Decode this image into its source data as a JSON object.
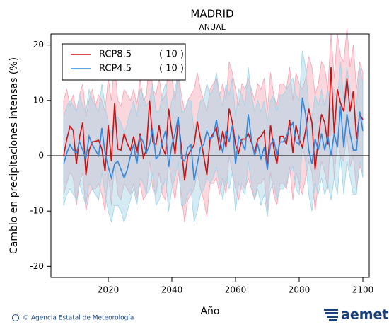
{
  "chart_data": {
    "type": "line",
    "title": "MADRID",
    "subtitle": "ANUAL",
    "y_label": "Cambio en precipitaciones intensas (%)",
    "x_label": "Año",
    "source": "© Agencia Estatal de Meteorología",
    "logo": "aemet",
    "xlim": [
      2002,
      2102
    ],
    "xticks": [
      2020,
      2040,
      2060,
      2080,
      2100
    ],
    "ylim": [
      -22,
      22
    ],
    "yticks": [
      -20,
      -10,
      0,
      10,
      20
    ],
    "hline": 0,
    "legend": "upper left",
    "x": [
      2006,
      2007,
      2008,
      2009,
      2010,
      2011,
      2012,
      2013,
      2014,
      2015,
      2016,
      2017,
      2018,
      2019,
      2020,
      2021,
      2022,
      2023,
      2024,
      2025,
      2026,
      2027,
      2028,
      2029,
      2030,
      2031,
      2032,
      2033,
      2034,
      2035,
      2036,
      2037,
      2038,
      2039,
      2040,
      2041,
      2042,
      2043,
      2044,
      2045,
      2046,
      2047,
      2048,
      2049,
      2050,
      2051,
      2052,
      2053,
      2054,
      2055,
      2056,
      2057,
      2058,
      2059,
      2060,
      2061,
      2062,
      2063,
      2064,
      2065,
      2066,
      2067,
      2068,
      2069,
      2070,
      2071,
      2072,
      2073,
      2074,
      2075,
      2076,
      2077,
      2078,
      2079,
      2080,
      2081,
      2082,
      2083,
      2084,
      2085,
      2086,
      2087,
      2088,
      2089,
      2090,
      2091,
      2092,
      2093,
      2094,
      2095,
      2096,
      2097,
      2098,
      2099,
      2100
    ],
    "series": [
      {
        "name": "RCP8.5",
        "legend_note": "( 10 )",
        "color": "#cc1111",
        "band_color": "#f5a3b3",
        "values": [
          0,
          3,
          5.3,
          4.6,
          -1.5,
          3.4,
          6,
          -3.5,
          1,
          2.5,
          2.6,
          2.8,
          1.2,
          -2.8,
          5.5,
          -1,
          9.5,
          1.2,
          1,
          4,
          2.2,
          1,
          3.5,
          0.5,
          4,
          -0.3,
          1,
          10,
          2.5,
          2,
          5.5,
          1.5,
          0.2,
          8.5,
          4.2,
          0.3,
          6.5,
          1.5,
          -4.5,
          0,
          1,
          2,
          6.2,
          3,
          0,
          -3.5,
          3,
          4,
          5,
          1,
          4.5,
          1.5,
          8.5,
          6,
          2,
          0.5,
          3,
          3,
          4,
          2.5,
          0.5,
          3,
          3.5,
          4.5,
          -2.5,
          5.5,
          1.5,
          -1.5,
          3.5,
          3.5,
          2,
          6.5,
          0.5,
          5.5,
          3,
          1.5,
          4.5,
          8.5,
          6,
          -2.5,
          3,
          7.5,
          6,
          2,
          16,
          4,
          12,
          9.5,
          8,
          14,
          8,
          11.7,
          3,
          7.5,
          6.5
        ],
        "upper": [
          10,
          12,
          9,
          11,
          8,
          11,
          13,
          7,
          10,
          12,
          9,
          11,
          10,
          8,
          14,
          10,
          17,
          10,
          9,
          12,
          11,
          10,
          12,
          9,
          14,
          10,
          11,
          18,
          12,
          11,
          14,
          10,
          11,
          16,
          14,
          10,
          15,
          11,
          8,
          10,
          11,
          12,
          15,
          12,
          10,
          8,
          12,
          13,
          14,
          11,
          13,
          10,
          17,
          15,
          12,
          9,
          13,
          12,
          14,
          12,
          10,
          13,
          12,
          14,
          8,
          15,
          11,
          9,
          13,
          13,
          12,
          16,
          10,
          15,
          13,
          12,
          14,
          18,
          16,
          11,
          13,
          17,
          16,
          12,
          22,
          14,
          22,
          18,
          17,
          23,
          16,
          20,
          12,
          17,
          15
        ],
        "lower": [
          -7,
          -5,
          -3,
          -4,
          -9,
          -5,
          -3,
          -10,
          -7,
          -6,
          -6,
          -5,
          -7,
          -10,
          -3,
          -9,
          -1,
          -7,
          -8,
          -5,
          -6,
          -7,
          -5,
          -8,
          -5,
          -8,
          -7,
          -1,
          -6,
          -7,
          -3,
          -7,
          -8,
          -1,
          -5,
          -8,
          -3,
          -7,
          -12,
          -8,
          -7,
          -6,
          -3,
          -6,
          -8,
          -11,
          -5,
          -5,
          -4,
          -7,
          -4,
          -7,
          0,
          -3,
          -6,
          -8,
          -5,
          -6,
          -4,
          -6,
          -8,
          -5,
          -5,
          -4,
          -10,
          -3,
          -7,
          -9,
          -5,
          -5,
          -6,
          -2,
          -8,
          -3,
          -5,
          -7,
          -4,
          -1,
          -3,
          -10,
          -5,
          -1,
          -3,
          -6,
          6,
          -4,
          3,
          0,
          -1,
          4,
          -2,
          0,
          -6,
          -2,
          -3
        ]
      },
      {
        "name": "RCP4.5",
        "legend_note": "( 10 )",
        "color": "#3388dd",
        "band_color": "#9fd3e6",
        "values": [
          -1.5,
          0.5,
          2,
          1,
          0.5,
          2.5,
          1,
          -0.5,
          3.5,
          2,
          1,
          0,
          5,
          0.5,
          -2,
          -4,
          -1.5,
          -1,
          -2.5,
          -4,
          -2.5,
          0,
          2,
          -1.5,
          3.5,
          2.5,
          0.5,
          2,
          5,
          -0.5,
          0,
          2.5,
          4.5,
          -2,
          2,
          4,
          7,
          -0.5,
          -1,
          1.5,
          2,
          -4.5,
          -1.5,
          1.5,
          2,
          4.5,
          3,
          3.5,
          6.5,
          3,
          0.5,
          4.5,
          2.5,
          5.5,
          -1.5,
          3.5,
          2.5,
          1,
          7.5,
          3,
          0,
          2,
          -0.5,
          1.5,
          -2.5,
          2,
          3,
          0,
          2.5,
          2.5,
          3.5,
          5,
          6,
          2.5,
          2,
          10.5,
          7.5,
          1,
          -1.5,
          3,
          1,
          4,
          1,
          3.5,
          0,
          4,
          1.5,
          9,
          1.5,
          7.5,
          4,
          1,
          1,
          8,
          4.5
        ],
        "upper": [
          7,
          9,
          10,
          9,
          8,
          11,
          9,
          8,
          12,
          10,
          9,
          8,
          13,
          9,
          6,
          4,
          7,
          7,
          6,
          4,
          6,
          8,
          10,
          7,
          12,
          11,
          9,
          10,
          13,
          8,
          8,
          11,
          13,
          7,
          10,
          12,
          15,
          8,
          8,
          10,
          10,
          4,
          7,
          10,
          10,
          13,
          11,
          12,
          15,
          11,
          9,
          13,
          11,
          14,
          7,
          12,
          11,
          9,
          16,
          11,
          8,
          10,
          8,
          10,
          6,
          10,
          11,
          8,
          11,
          11,
          12,
          13,
          14,
          11,
          10,
          19,
          16,
          9,
          7,
          11,
          9,
          12,
          9,
          12,
          8,
          12,
          10,
          17,
          10,
          16,
          12,
          9,
          9,
          16,
          13
        ],
        "lower": [
          -9,
          -7,
          -6,
          -7,
          -8,
          -5,
          -7,
          -9,
          -5,
          -6,
          -7,
          -8,
          -3,
          -7,
          -10,
          -12,
          -9,
          -9,
          -10,
          -12,
          -10,
          -8,
          -6,
          -9,
          -4,
          -5,
          -7,
          -6,
          -3,
          -9,
          -8,
          -6,
          -4,
          -10,
          -6,
          -4,
          -1,
          -9,
          -9,
          -7,
          -6,
          -12,
          -10,
          -7,
          -6,
          -4,
          -5,
          -4,
          -2,
          -5,
          -8,
          -4,
          -6,
          -3,
          -10,
          -5,
          -6,
          -7,
          -1,
          -5,
          -8,
          -6,
          -9,
          -7,
          -11,
          -6,
          -5,
          -8,
          -6,
          -6,
          -5,
          -3,
          -2,
          -6,
          -7,
          2,
          -1,
          -7,
          -10,
          -5,
          -7,
          -4,
          -7,
          -5,
          -8,
          -4,
          -7,
          0,
          -7,
          -1,
          -4,
          -7,
          -7,
          -1,
          -4
        ]
      }
    ]
  }
}
